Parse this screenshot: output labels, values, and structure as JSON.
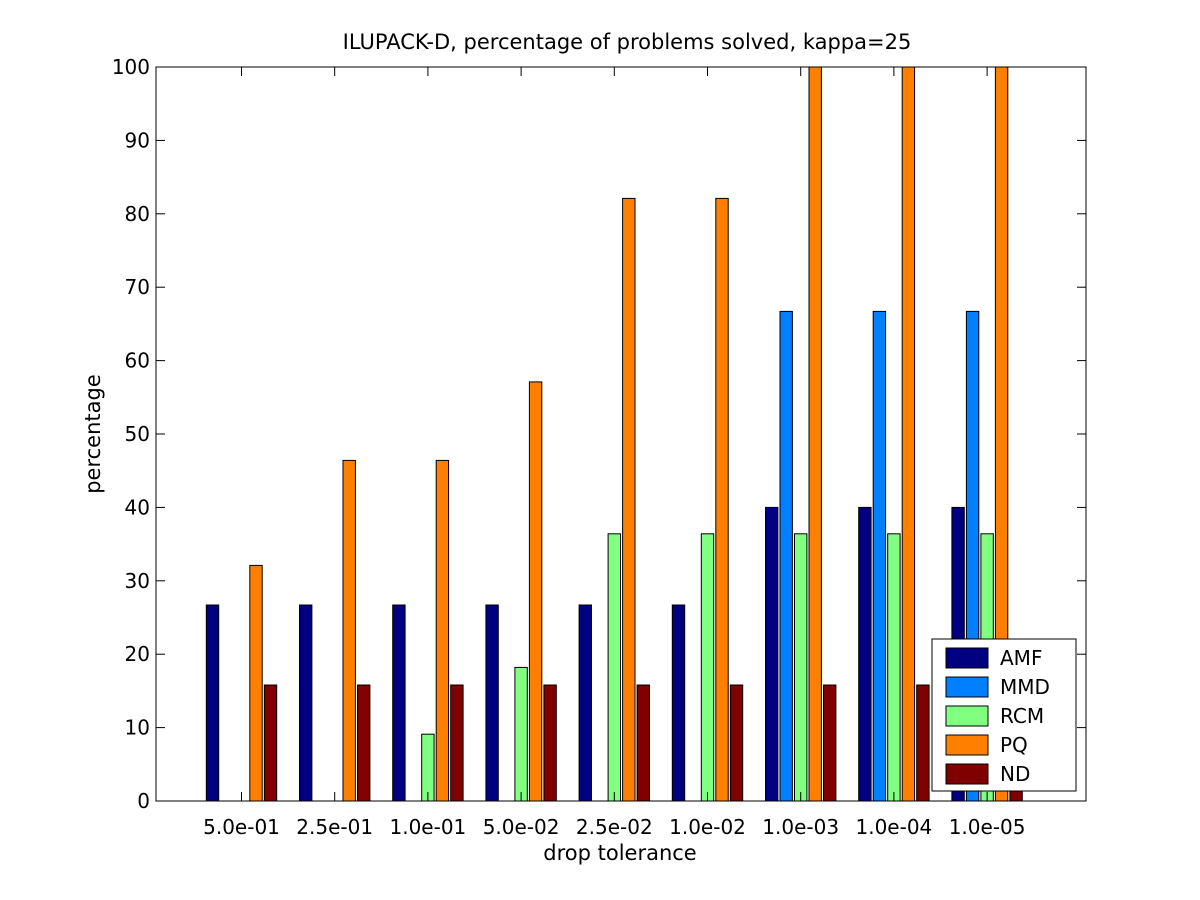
{
  "chart_data": {
    "type": "bar",
    "title": "ILUPACK-D, percentage of problems solved, kappa=25",
    "xlabel": "drop tolerance",
    "ylabel": "percentage",
    "ylim": [
      0,
      100
    ],
    "yticks": [
      0,
      10,
      20,
      30,
      40,
      50,
      60,
      70,
      80,
      90,
      100
    ],
    "categories": [
      "5.0e-01",
      "2.5e-01",
      "1.0e-01",
      "5.0e-02",
      "2.5e-02",
      "1.0e-02",
      "1.0e-03",
      "1.0e-04",
      "1.0e-05"
    ],
    "legend_position": "bottom-right",
    "grid": false,
    "series": [
      {
        "name": "AMF",
        "color": "#000080",
        "values": [
          26.7,
          26.7,
          26.7,
          26.7,
          26.7,
          26.7,
          40,
          40,
          40
        ]
      },
      {
        "name": "MMD",
        "color": "#0080ff",
        "values": [
          0,
          0,
          0,
          0,
          0,
          0,
          66.7,
          66.7,
          66.7
        ]
      },
      {
        "name": "RCM",
        "color": "#80ff80",
        "values": [
          0,
          0,
          9.1,
          18.2,
          36.4,
          36.4,
          36.4,
          36.4,
          36.4
        ]
      },
      {
        "name": "PQ",
        "color": "#ff8000",
        "values": [
          32.1,
          46.4,
          46.4,
          57.1,
          82.1,
          82.1,
          100,
          100,
          100
        ]
      },
      {
        "name": "ND",
        "color": "#800000",
        "values": [
          15.8,
          15.8,
          15.8,
          15.8,
          15.8,
          15.8,
          15.8,
          15.8,
          15.8
        ]
      }
    ]
  }
}
